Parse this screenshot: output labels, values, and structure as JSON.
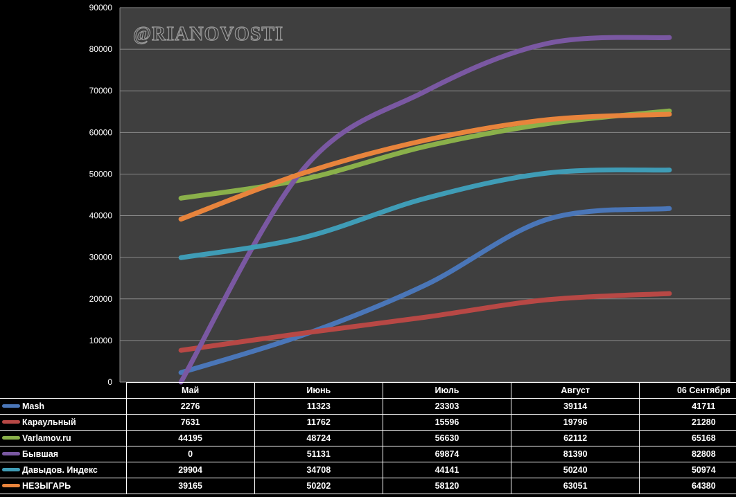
{
  "chart_data": {
    "type": "line",
    "categories": [
      "Май",
      "Июнь",
      "Июль",
      "Август",
      "06 Сентября"
    ],
    "ylim": [
      0,
      90000
    ],
    "yticks": [
      0,
      10000,
      20000,
      30000,
      40000,
      50000,
      60000,
      70000,
      80000,
      90000
    ],
    "ytick_labels": [
      "0",
      "10000",
      "20000",
      "30000",
      "40000",
      "50000",
      "60000",
      "70000",
      "80000",
      "90000"
    ],
    "grid": true,
    "legend_placement": "data table below chart",
    "watermark": "@RIANOVOSTI",
    "series": [
      {
        "name": "Mash",
        "color": "#4a76b8",
        "values": [
          2276,
          11323,
          23303,
          39114,
          41711
        ]
      },
      {
        "name": "Караульный",
        "color": "#b84845",
        "values": [
          7631,
          11762,
          15596,
          19796,
          21280
        ]
      },
      {
        "name": "Varlamov.ru",
        "color": "#8ab04a",
        "values": [
          44195,
          48724,
          56630,
          62112,
          65168
        ]
      },
      {
        "name": "Бывшая",
        "color": "#7a58a2",
        "values": [
          0,
          51131,
          69874,
          81390,
          82808
        ]
      },
      {
        "name": "Давыдов. Индекс",
        "color": "#3f9cb6",
        "values": [
          29904,
          34708,
          44141,
          50240,
          50974
        ]
      },
      {
        "name": "НЕЗЫГАРЬ",
        "color": "#e8843c",
        "values": [
          39165,
          50202,
          58120,
          63051,
          64380
        ]
      }
    ]
  }
}
